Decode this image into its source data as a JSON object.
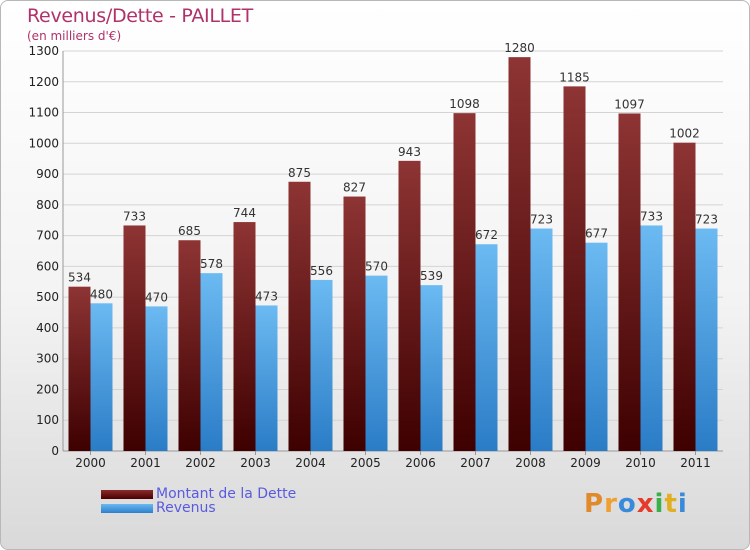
{
  "title": "Revenus/Dette - PAILLET",
  "subtitle": "(en milliers d'€)",
  "logo_text": "Proxiti",
  "logo_colors": [
    "#e08a2a",
    "#f0a030",
    "#3a8adc",
    "#e63a2a",
    "#3ab04a",
    "#e0b020",
    "#3a8adc"
  ],
  "legend": [
    {
      "label": "Montant de la Dette",
      "key": "debt"
    },
    {
      "label": "Revenus",
      "key": "rev"
    }
  ],
  "colors": {
    "debt_top": "#8e3434",
    "debt_bottom": "#3e0000",
    "rev_top": "#6cbaf2",
    "rev_bottom": "#2a7cc6",
    "grid": "#d4d4d4",
    "axis_text": "#222222",
    "label_text": "#333333"
  },
  "chart_data": {
    "type": "bar",
    "title": "Revenus/Dette - PAILLET",
    "subtitle": "(en milliers d'€)",
    "xlabel": "",
    "ylabel": "",
    "categories": [
      "2000",
      "2001",
      "2002",
      "2003",
      "2004",
      "2005",
      "2006",
      "2007",
      "2008",
      "2009",
      "2010",
      "2011"
    ],
    "series": [
      {
        "name": "Montant de la Dette",
        "values": [
          534,
          733,
          685,
          744,
          875,
          827,
          943,
          1098,
          1280,
          1185,
          1097,
          1002
        ]
      },
      {
        "name": "Revenus",
        "values": [
          480,
          470,
          578,
          473,
          556,
          570,
          539,
          672,
          723,
          677,
          733,
          723
        ]
      }
    ],
    "ylim": [
      0,
      1300
    ],
    "yticks": [
      0,
      100,
      200,
      300,
      400,
      500,
      600,
      700,
      800,
      900,
      1000,
      1100,
      1200,
      1300
    ],
    "grid": true,
    "legend_position": "bottom-left"
  }
}
